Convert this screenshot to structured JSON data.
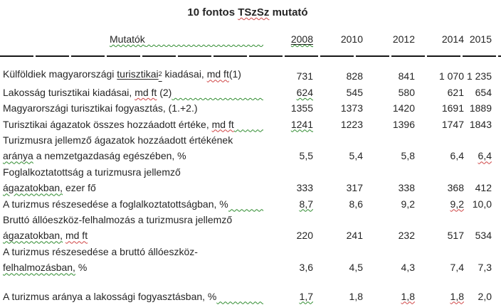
{
  "title": {
    "segments": [
      {
        "text": "10 fontos ",
        "style": "plain"
      },
      {
        "text": "TSzSz",
        "style": "sq-red"
      },
      {
        "text": " mutató",
        "style": "plain"
      }
    ]
  },
  "colors": {
    "spellcheck_red": "#cf4444",
    "grammar_green": "#2e8b2e",
    "text": "#252525"
  },
  "header": {
    "label": [
      {
        "text": "Mutatók",
        "style": "sq-green"
      }
    ],
    "connector": "green",
    "years": [
      {
        "text": "2008",
        "style": "u+sq-green"
      },
      {
        "text": "2010",
        "style": "plain"
      },
      {
        "text": "2012",
        "style": "plain"
      },
      {
        "text": "2014",
        "style": "plain"
      },
      {
        "text": "2015",
        "style": "plain"
      }
    ]
  },
  "rows": [
    {
      "lines": [
        [
          {
            "text": "Külföldiek magyarországi ",
            "style": "plain"
          },
          {
            "text": "turisztikai",
            "style": "u"
          },
          {
            "text": "2",
            "style": "u+sup"
          },
          {
            "text": " kiadásai, ",
            "style": "plain"
          },
          {
            "text": "md ft",
            "style": "sq-red"
          },
          {
            "text": "(1)",
            "style": "plain"
          }
        ]
      ],
      "connector": null,
      "values": [
        {
          "text": "731",
          "style": "plain"
        },
        {
          "text": "828",
          "style": "plain"
        },
        {
          "text": "841",
          "style": "plain"
        },
        {
          "text": "1 070",
          "style": "plain"
        },
        {
          "text": "1 235",
          "style": "plain"
        }
      ]
    },
    {
      "lines": [
        [
          {
            "text": "Lakosság turisztikai kiadásai, ",
            "style": "plain"
          },
          {
            "text": "md ft",
            "style": "sq-red"
          },
          {
            "text": " (2)",
            "style": "plain"
          }
        ]
      ],
      "connector": "green",
      "values": [
        {
          "text": "624",
          "style": "sq-green"
        },
        {
          "text": "545",
          "style": "plain"
        },
        {
          "text": "580",
          "style": "plain"
        },
        {
          "text": "621",
          "style": "plain"
        },
        {
          "text": "654",
          "style": "plain"
        }
      ]
    },
    {
      "lines": [
        [
          {
            "text": "Magyarországi turisztikai fogyasztás, (1.+2.)",
            "style": "plain"
          }
        ]
      ],
      "connector": null,
      "values": [
        {
          "text": "1355",
          "style": "plain"
        },
        {
          "text": "1373",
          "style": "plain"
        },
        {
          "text": "1420",
          "style": "plain"
        },
        {
          "text": "1691",
          "style": "plain"
        },
        {
          "text": "1889",
          "style": "plain"
        }
      ]
    },
    {
      "lines": [
        [
          {
            "text": "Turisztikai ágazatok összes hozzáadott értéke, ",
            "style": "plain"
          },
          {
            "text": "md ft",
            "style": "sq-red"
          }
        ]
      ],
      "connector": "green",
      "values": [
        {
          "text": "1241",
          "style": "sq-green"
        },
        {
          "text": "1223",
          "style": "plain"
        },
        {
          "text": "1396",
          "style": "plain"
        },
        {
          "text": "1747",
          "style": "plain"
        },
        {
          "text": "1843",
          "style": "plain"
        }
      ]
    },
    {
      "lines": [
        [
          {
            "text": "Turizmusra jellemző ágazatok hozzáadott értékének",
            "style": "plain"
          }
        ],
        [
          {
            "text": "aránya",
            "style": "sq-green"
          },
          {
            "text": " a nemzetgazdaság egészében, %",
            "style": "plain"
          }
        ]
      ],
      "connector": null,
      "values": [
        {
          "text": "5,5",
          "style": "plain"
        },
        {
          "text": "5,4",
          "style": "plain"
        },
        {
          "text": "5,8",
          "style": "plain"
        },
        {
          "text": "6,4",
          "style": "plain"
        },
        {
          "text": "6,4",
          "style": "sq-red"
        }
      ]
    },
    {
      "lines": [
        [
          {
            "text": "Foglalkoztatottság a turizmusra jellemző",
            "style": "plain"
          }
        ],
        [
          {
            "text": "ágazatokban,",
            "style": "sq-green"
          },
          {
            "text": " ezer fő",
            "style": "plain"
          }
        ]
      ],
      "connector": null,
      "values": [
        {
          "text": "333",
          "style": "plain"
        },
        {
          "text": "317",
          "style": "plain"
        },
        {
          "text": "338",
          "style": "plain"
        },
        {
          "text": "368",
          "style": "plain"
        },
        {
          "text": "412",
          "style": "plain"
        }
      ]
    },
    {
      "lines": [
        [
          {
            "text": "A turizmus részesedése a foglalkoztatottságban, %",
            "style": "plain"
          }
        ]
      ],
      "connector": "green",
      "values": [
        {
          "text": "8,7",
          "style": "sq-green"
        },
        {
          "text": "8,6",
          "style": "plain"
        },
        {
          "text": "9,2",
          "style": "plain"
        },
        {
          "text": "9,2",
          "style": "sq-red"
        },
        {
          "text": "10,0",
          "style": "plain"
        }
      ]
    },
    {
      "lines": [
        [
          {
            "text": "Bruttó állóeszköz-felhalmozás a turizmusra jellemző",
            "style": "plain"
          }
        ],
        [
          {
            "text": "ágazatokban,",
            "style": "sq-green"
          },
          {
            "text": " ",
            "style": "plain"
          },
          {
            "text": "md ft",
            "style": "sq-red"
          }
        ]
      ],
      "connector": null,
      "values": [
        {
          "text": "220",
          "style": "plain"
        },
        {
          "text": "241",
          "style": "plain"
        },
        {
          "text": "232",
          "style": "plain"
        },
        {
          "text": "517",
          "style": "plain"
        },
        {
          "text": "534",
          "style": "plain"
        }
      ]
    },
    {
      "lines": [
        [
          {
            "text": "A turizmus részesedése a bruttó állóeszköz-",
            "style": "plain"
          }
        ],
        [
          {
            "text": "felhalmozásban,",
            "style": "sq-green"
          },
          {
            "text": " %",
            "style": "plain"
          }
        ]
      ],
      "connector": null,
      "values": [
        {
          "text": "3,6",
          "style": "plain"
        },
        {
          "text": "4,5",
          "style": "plain"
        },
        {
          "text": "4,3",
          "style": "plain"
        },
        {
          "text": "7,4",
          "style": "plain"
        },
        {
          "text": "7,3",
          "style": "plain"
        }
      ]
    },
    {
      "spacer_before": true,
      "lines": [
        [
          {
            "text": "A turizmus aránya a lakossági fogyasztásban, %",
            "style": "plain"
          }
        ]
      ],
      "connector": "green",
      "values": [
        {
          "text": "1,7",
          "style": "sq-green"
        },
        {
          "text": "1,8",
          "style": "plain"
        },
        {
          "text": "1,8",
          "style": "sq-red"
        },
        {
          "text": "1,8",
          "style": "sq-red"
        },
        {
          "text": "2,0",
          "style": "plain"
        }
      ]
    }
  ]
}
